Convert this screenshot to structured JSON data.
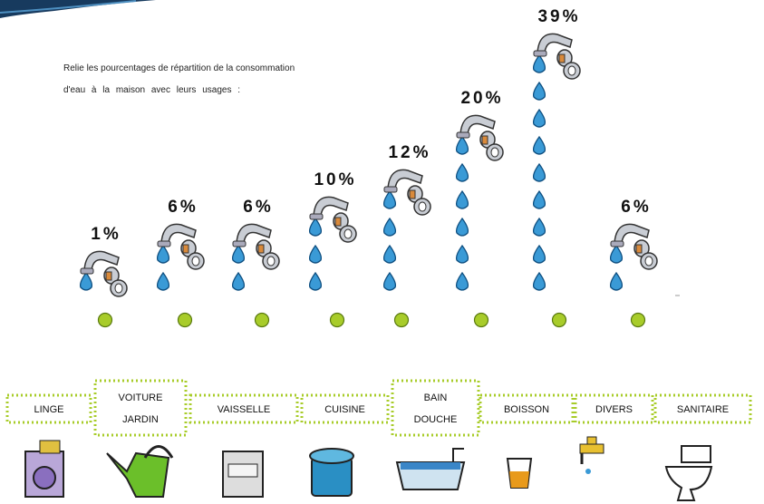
{
  "instruction": [
    "Relie les pourcentages de répartition de la consommation",
    "d'eau à la maison avec leurs usages :"
  ],
  "percentages": [
    "1%",
    "6%",
    "6%",
    "10%",
    "12%",
    "20%",
    "39%",
    "6%"
  ],
  "usages": [
    [
      "LINGE"
    ],
    [
      "VOITURE",
      "JARDIN"
    ],
    [
      "VAISSELLE"
    ],
    [
      "CUISINE"
    ],
    [
      "BAIN",
      "DOUCHE"
    ],
    [
      "BOISSON"
    ],
    [
      "DIVERS"
    ],
    [
      "SANITAIRE"
    ]
  ]
}
